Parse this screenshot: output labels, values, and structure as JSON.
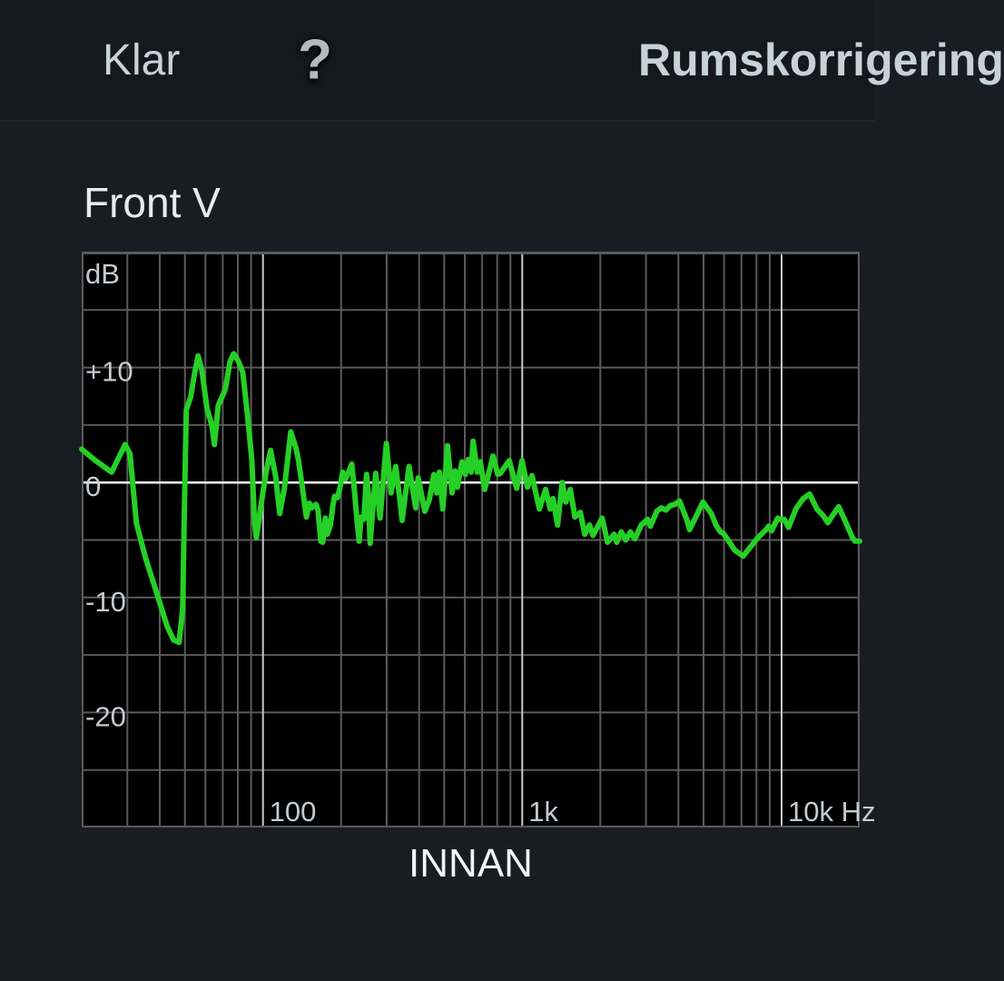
{
  "topbar": {
    "done_label": "Klar",
    "help_icon_glyph": "?",
    "title": "Rumskorrigering"
  },
  "chart": {
    "header": "Front V",
    "caption": "INNAN"
  },
  "colors": {
    "page_bg": "#191c22",
    "topbar_bg": "#15181d",
    "plot_bg": "#000000",
    "grid_minor": "#5a5a5a",
    "grid_major": "#c4c8cc",
    "zero_line": "#ffffff",
    "curve_green": "#26cf26",
    "label_gray": "#c6cbd0",
    "title_gray": "#c7d1da"
  },
  "chart_data": {
    "type": "line",
    "title": "Front V",
    "caption_below": "INNAN",
    "x_scale": "log",
    "x_range_hz": [
      20,
      20000
    ],
    "y_range_db": [
      -30,
      20
    ],
    "grid": true,
    "legend": false,
    "corner_label": "dB",
    "y_axis_labels": [
      {
        "db": 10,
        "label": "+10"
      },
      {
        "db": 0,
        "label": "0"
      },
      {
        "db": -10,
        "label": "-10"
      },
      {
        "db": -20,
        "label": "-20"
      }
    ],
    "y_gridlines_db": [
      20,
      15,
      10,
      5,
      0,
      -5,
      -10,
      -15,
      -20,
      -25
    ],
    "x_major_ticks": [
      {
        "hz": 100,
        "label": "100"
      },
      {
        "hz": 1000,
        "label": "1k"
      },
      {
        "hz": 10000,
        "label": "10k Hz"
      }
    ],
    "x_minor_gridlines_hz": [
      30,
      40,
      50,
      60,
      70,
      80,
      90,
      200,
      300,
      400,
      500,
      600,
      700,
      800,
      900,
      2000,
      3000,
      4000,
      5000,
      6000,
      7000,
      8000,
      9000
    ],
    "series": [
      {
        "name": "measured-response-before",
        "color": "#26cf26",
        "points_hz_db": [
          [
            20,
            2.9
          ],
          [
            22.6,
            1.9
          ],
          [
            26.1,
            0.9
          ],
          [
            29.4,
            3.3
          ],
          [
            30.7,
            2.5
          ],
          [
            32.5,
            -3.5
          ],
          [
            35.2,
            -6.5
          ],
          [
            38.8,
            -9.5
          ],
          [
            42.7,
            -12.5
          ],
          [
            45.2,
            -13.7
          ],
          [
            47.5,
            -13.9
          ],
          [
            49,
            -11
          ],
          [
            49.8,
            -2
          ],
          [
            50.6,
            6.3
          ],
          [
            52.7,
            7.5
          ],
          [
            54.5,
            9.5
          ],
          [
            56.2,
            11
          ],
          [
            58.1,
            9.8
          ],
          [
            60.9,
            6.4
          ],
          [
            63.5,
            5
          ],
          [
            65,
            3.3
          ],
          [
            67.2,
            6.7
          ],
          [
            71.6,
            8.1
          ],
          [
            74.6,
            10.5
          ],
          [
            77.1,
            11.2
          ],
          [
            80.2,
            10.6
          ],
          [
            83.6,
            9.6
          ],
          [
            87,
            6
          ],
          [
            90.6,
            2
          ],
          [
            92.8,
            -3.5
          ],
          [
            94.3,
            -4.8
          ],
          [
            98.2,
            -2
          ],
          [
            103,
            1
          ],
          [
            107,
            2.8
          ],
          [
            112,
            0.5
          ],
          [
            116,
            -2.7
          ],
          [
            121,
            -0.5
          ],
          [
            128,
            4.4
          ],
          [
            134,
            3
          ],
          [
            137,
            2
          ],
          [
            142,
            -0.5
          ],
          [
            147,
            -3
          ],
          [
            151,
            -1.8
          ],
          [
            154,
            -2.2
          ],
          [
            160,
            -1.9
          ],
          [
            163,
            -2.4
          ],
          [
            167,
            -5.1
          ],
          [
            170,
            -5.2
          ],
          [
            174,
            -3.1
          ],
          [
            177,
            -4.5
          ],
          [
            182,
            -3.7
          ],
          [
            186,
            -2
          ],
          [
            189,
            -1.2
          ],
          [
            194,
            -1.3
          ],
          [
            198,
            -0.5
          ],
          [
            203,
            0.9
          ],
          [
            208,
            0.3
          ],
          [
            213,
            0.8
          ],
          [
            220,
            1.6
          ],
          [
            226,
            -1
          ],
          [
            231,
            -3.5
          ],
          [
            235,
            -5.1
          ],
          [
            239,
            -3
          ],
          [
            245,
            -3.2
          ],
          [
            251,
            0.7
          ],
          [
            255,
            -1
          ],
          [
            259,
            -5.3
          ],
          [
            266,
            -2
          ],
          [
            272,
            0.8
          ],
          [
            283,
            -3.1
          ],
          [
            299,
            3.4
          ],
          [
            312,
            -0.9
          ],
          [
            325,
            1.4
          ],
          [
            338,
            -1.7
          ],
          [
            344,
            -3.3
          ],
          [
            366,
            1.4
          ],
          [
            388,
            -2.2
          ],
          [
            397,
            0.4
          ],
          [
            421,
            -2.5
          ],
          [
            438,
            -1.5
          ],
          [
            456,
            0.7
          ],
          [
            467,
            -0.9
          ],
          [
            479,
            0.9
          ],
          [
            494,
            -2.3
          ],
          [
            515,
            3.2
          ],
          [
            536,
            -0.9
          ],
          [
            550,
            1
          ],
          [
            562,
            -0.4
          ],
          [
            586,
            1.8
          ],
          [
            603,
            0.7
          ],
          [
            619,
            2
          ],
          [
            635,
            0.9
          ],
          [
            646,
            3.6
          ],
          [
            671,
            0.9
          ],
          [
            689,
            1.8
          ],
          [
            716,
            -0.6
          ],
          [
            771,
            2.3
          ],
          [
            804,
            0.7
          ],
          [
            822,
            0.8
          ],
          [
            891,
            1.9
          ],
          [
            951,
            -0.5
          ],
          [
            998,
            1.9
          ],
          [
            1047,
            -0.4
          ],
          [
            1090,
            0.6
          ],
          [
            1164,
            -2.3
          ],
          [
            1230,
            -0.6
          ],
          [
            1281,
            -2.3
          ],
          [
            1314,
            -1.4
          ],
          [
            1368,
            -3.7
          ],
          [
            1425,
            0
          ],
          [
            1472,
            -1.7
          ],
          [
            1532,
            -0.6
          ],
          [
            1596,
            -3
          ],
          [
            1675,
            -2.6
          ],
          [
            1742,
            -4.5
          ],
          [
            1816,
            -3.7
          ],
          [
            1875,
            -4.6
          ],
          [
            2032,
            -3.1
          ],
          [
            2133,
            -5.2
          ],
          [
            2260,
            -4.5
          ],
          [
            2313,
            -5.2
          ],
          [
            2410,
            -4.3
          ],
          [
            2506,
            -5
          ],
          [
            2612,
            -4.3
          ],
          [
            2718,
            -4.9
          ],
          [
            2877,
            -3.7
          ],
          [
            3041,
            -3.2
          ],
          [
            3119,
            -3.8
          ],
          [
            3302,
            -2.5
          ],
          [
            3436,
            -2.2
          ],
          [
            3580,
            -2.4
          ],
          [
            3724,
            -2
          ],
          [
            3881,
            -1.9
          ],
          [
            4037,
            -1.6
          ],
          [
            4305,
            -3.2
          ],
          [
            4416,
            -4.1
          ],
          [
            4668,
            -3
          ],
          [
            4977,
            -1.7
          ],
          [
            5358,
            -2.7
          ],
          [
            5584,
            -3.7
          ],
          [
            5808,
            -4.3
          ],
          [
            5957,
            -4.4
          ],
          [
            6296,
            -5.2
          ],
          [
            6607,
            -5.9
          ],
          [
            7112,
            -6.4
          ],
          [
            7586,
            -5.6
          ],
          [
            8091,
            -4.8
          ],
          [
            8710,
            -4.1
          ],
          [
            8912,
            -3.8
          ],
          [
            9141,
            -4.2
          ],
          [
            9661,
            -3.1
          ],
          [
            10069,
            -3.3
          ],
          [
            10233,
            -3.2
          ],
          [
            10642,
            -3.9
          ],
          [
            11351,
            -2.3
          ],
          [
            12110,
            -1.4
          ],
          [
            12823,
            -1
          ],
          [
            13677,
            -2.3
          ],
          [
            14486,
            -2.9
          ],
          [
            15066,
            -3.5
          ],
          [
            15812,
            -2.8
          ],
          [
            16596,
            -2.1
          ],
          [
            17701,
            -3.5
          ],
          [
            18750,
            -4.8
          ],
          [
            19188,
            -5.1
          ],
          [
            20000,
            -5.1
          ]
        ]
      }
    ]
  }
}
